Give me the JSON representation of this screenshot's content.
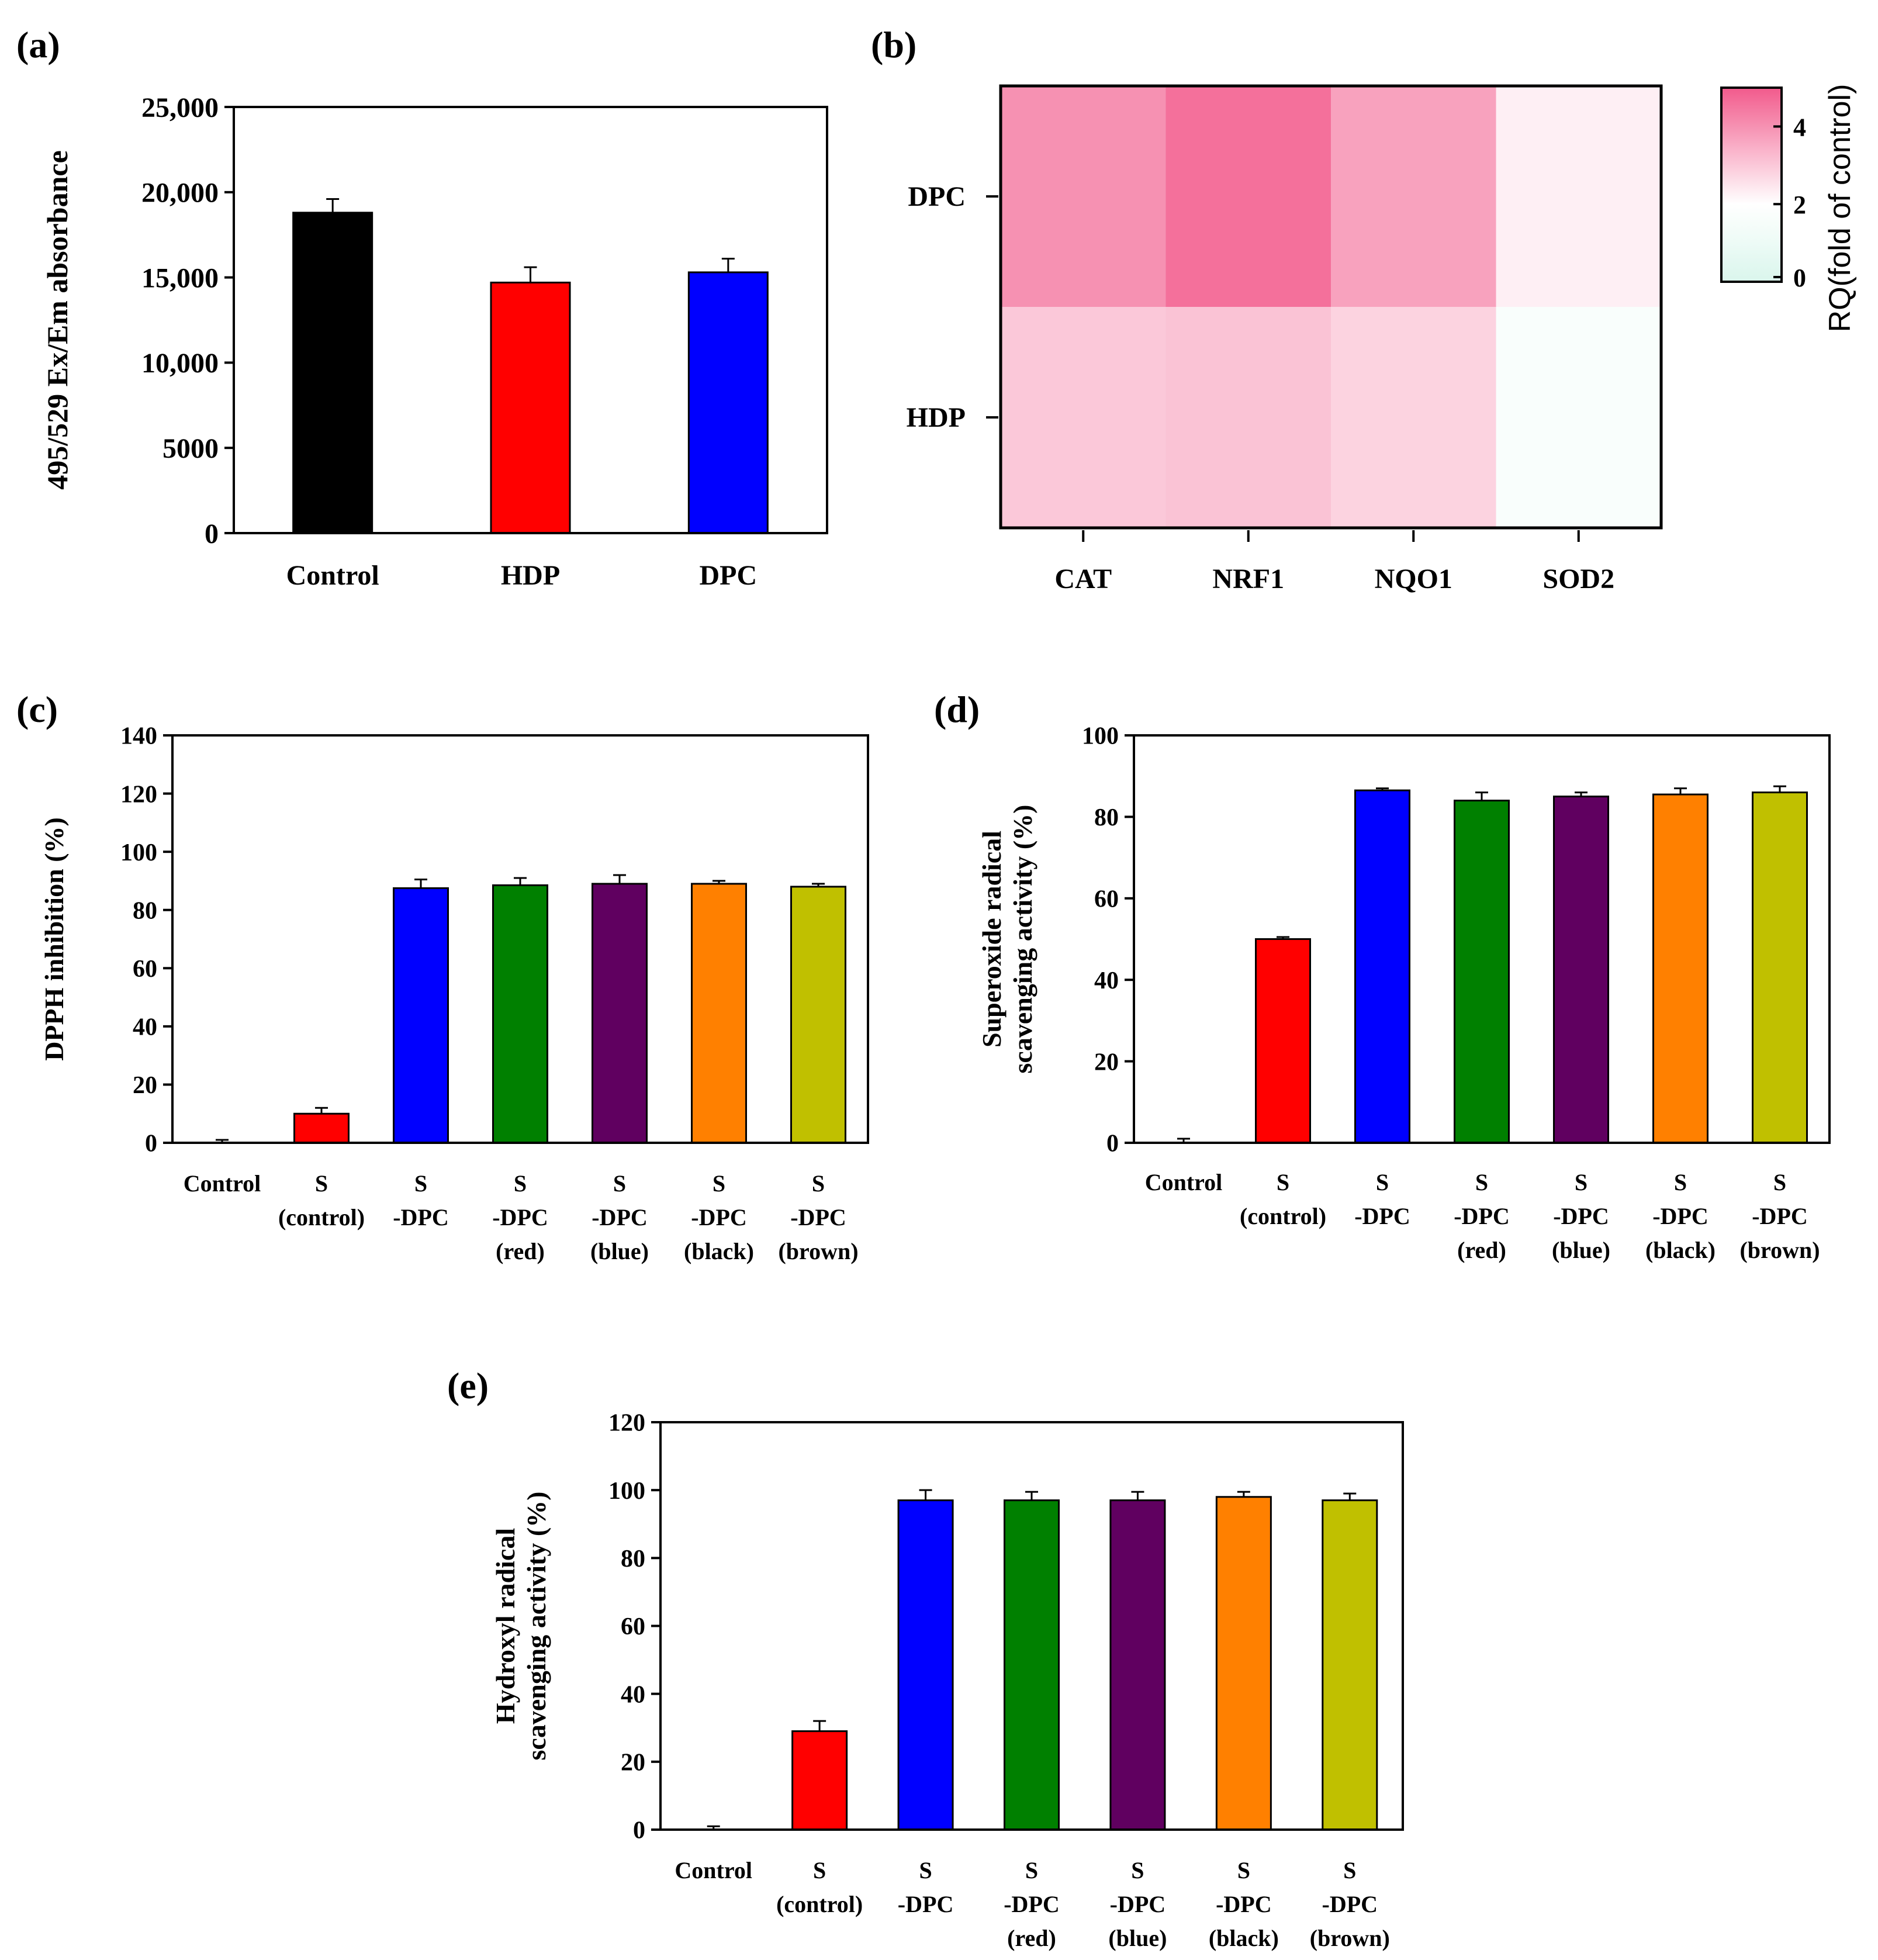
{
  "chart_data": [
    {
      "panel": "(a)",
      "type": "bar",
      "ylabel": "495/529 Ex/Em absorbance",
      "categories": [
        "Control",
        "HDP",
        "DPC"
      ],
      "values": [
        18800,
        14700,
        15300
      ],
      "errors": [
        800,
        900,
        800
      ],
      "colors": [
        "#000000",
        "#ff0000",
        "#0000ff"
      ],
      "ylim": [
        0,
        25000
      ],
      "yticks": [
        0,
        5000,
        10000,
        15000,
        20000,
        25000
      ],
      "yticklabels": [
        "0",
        "5000",
        "10,000",
        "15,000",
        "20,000",
        "25,000"
      ]
    },
    {
      "panel": "(b)",
      "type": "heatmap",
      "rows": [
        "DPC",
        "HDP"
      ],
      "columns": [
        "CAT",
        "NRF1",
        "NQO1",
        "SOD2"
      ],
      "values": [
        [
          4.0,
          4.6,
          3.7,
          2.3
        ],
        [
          3.0,
          3.1,
          2.8,
          1.7
        ]
      ],
      "colorbar_label": "RQ(fold of control)",
      "colorbar_ticks": [
        0,
        2,
        4
      ],
      "colorbar_range": [
        0,
        5
      ]
    },
    {
      "panel": "(c)",
      "type": "bar",
      "ylabel": "DPPH inhibition (%)",
      "categories": [
        [
          "Control"
        ],
        [
          "S",
          "(control)"
        ],
        [
          "S",
          "-DPC"
        ],
        [
          "S",
          "-DPC",
          "(red)"
        ],
        [
          "S",
          "-DPC",
          "(blue)"
        ],
        [
          "S",
          "-DPC",
          "(black)"
        ],
        [
          "S",
          "-DPC",
          "(brown)"
        ]
      ],
      "values": [
        0,
        10,
        87.5,
        88.5,
        89,
        89,
        88
      ],
      "errors": [
        1,
        2,
        3,
        2.5,
        3,
        1,
        1
      ],
      "colors": [
        "#ffffff",
        "#ff0000",
        "#0000ff",
        "#008000",
        "#600060",
        "#ff8000",
        "#c0c000"
      ],
      "ylim": [
        0,
        140
      ],
      "yticks": [
        0,
        20,
        40,
        60,
        80,
        100,
        120,
        140
      ]
    },
    {
      "panel": "(d)",
      "type": "bar",
      "ylabel": [
        "Superoxide radical",
        "scavenging activity (%)"
      ],
      "categories": [
        [
          "Control"
        ],
        [
          "S",
          "(control)"
        ],
        [
          "S",
          "-DPC"
        ],
        [
          "S",
          "-DPC",
          "(red)"
        ],
        [
          "S",
          "-DPC",
          "(blue)"
        ],
        [
          "S",
          "-DPC",
          "(black)"
        ],
        [
          "S",
          "-DPC",
          "(brown)"
        ]
      ],
      "values": [
        0,
        50,
        86.5,
        84,
        85,
        85.5,
        86
      ],
      "errors": [
        1,
        0.5,
        0.5,
        2,
        1,
        1.5,
        1.5
      ],
      "colors": [
        "#ffffff",
        "#ff0000",
        "#0000ff",
        "#008000",
        "#600060",
        "#ff8000",
        "#c0c000"
      ],
      "ylim": [
        0,
        100
      ],
      "yticks": [
        0,
        20,
        40,
        60,
        80,
        100
      ]
    },
    {
      "panel": "(e)",
      "type": "bar",
      "ylabel": [
        "Hydroxyl radical",
        "scavenging activity (%)"
      ],
      "categories": [
        [
          "Control"
        ],
        [
          "S",
          "(control)"
        ],
        [
          "S",
          "-DPC"
        ],
        [
          "S",
          "-DPC",
          "(red)"
        ],
        [
          "S",
          "-DPC",
          "(blue)"
        ],
        [
          "S",
          "-DPC",
          "(black)"
        ],
        [
          "S",
          "-DPC",
          "(brown)"
        ]
      ],
      "values": [
        0,
        29,
        97,
        97,
        97,
        98,
        97
      ],
      "errors": [
        1,
        3,
        3,
        2.5,
        2.5,
        1.5,
        2
      ],
      "colors": [
        "#ffffff",
        "#ff0000",
        "#0000ff",
        "#008000",
        "#600060",
        "#ff8000",
        "#c0c000"
      ],
      "ylim": [
        0,
        120
      ],
      "yticks": [
        0,
        20,
        40,
        60,
        80,
        100,
        120
      ]
    }
  ]
}
